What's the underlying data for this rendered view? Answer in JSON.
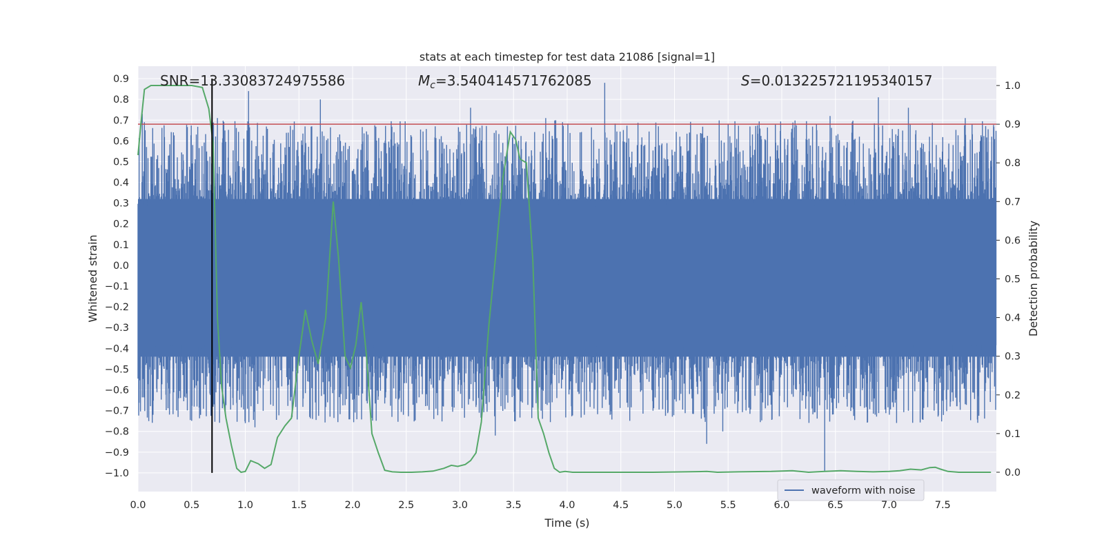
{
  "chart_data": {
    "type": "line",
    "title": "stats at each timestep for test data 21086 [signal=1]",
    "xlabel": "Time (s)",
    "ylabel_left": "Whitened strain",
    "ylabel_right": "Detection probability",
    "xlim": [
      0.0,
      8.0
    ],
    "ylim_left": [
      -1.09,
      0.96
    ],
    "ylim_right": [
      -0.05,
      1.05
    ],
    "x_ticks": [
      "0.0",
      "0.5",
      "1.0",
      "1.5",
      "2.0",
      "2.5",
      "3.0",
      "3.5",
      "4.0",
      "4.5",
      "5.0",
      "5.5",
      "6.0",
      "6.5",
      "7.0",
      "7.5"
    ],
    "y_left_ticks": [
      "0.9",
      "0.8",
      "0.7",
      "0.6",
      "0.5",
      "0.4",
      "0.3",
      "0.2",
      "0.1",
      "0.0",
      "−0.1",
      "−0.2",
      "−0.3",
      "−0.4",
      "−0.5",
      "−0.6",
      "−0.7",
      "−0.8",
      "−0.9",
      "−1.0"
    ],
    "y_right_ticks": [
      "1.0",
      "0.9",
      "0.8",
      "0.7",
      "0.6",
      "0.5",
      "0.4",
      "0.3",
      "0.2",
      "0.1",
      "0.0"
    ],
    "grid": true,
    "annotations": {
      "snr": "SNR=13.33083724975586",
      "mc_symbol": "M",
      "mc_sub": "c",
      "mc_value": "=3.540414571762085",
      "s_symbol": "S",
      "s_value": "=0.013225721195340157"
    },
    "threshold": {
      "axis": "right",
      "value": 0.9,
      "color": "#c44e52"
    },
    "marker_line": {
      "x": 0.69,
      "y_from": -1.0,
      "y_to": 0.9,
      "color": "#000000"
    },
    "series": [
      {
        "name": "waveform with noise",
        "axis": "left",
        "color": "#4c72b0",
        "kind": "noisy-strain",
        "dense_band": [
          -0.44,
          0.32
        ],
        "samples": 2400,
        "spikes": [
          {
            "x": 0.04,
            "y": 0.73
          },
          {
            "x": 0.06,
            "y": 0.69
          },
          {
            "x": 0.1,
            "y": -0.75
          },
          {
            "x": 0.29,
            "y": 0.53
          },
          {
            "x": 0.38,
            "y": -0.64
          },
          {
            "x": 0.51,
            "y": 0.58
          },
          {
            "x": 0.55,
            "y": -0.68
          },
          {
            "x": 0.64,
            "y": 0.53
          },
          {
            "x": 0.74,
            "y": 0.71
          },
          {
            "x": 1.03,
            "y": 0.84
          },
          {
            "x": 1.0,
            "y": -0.76
          },
          {
            "x": 1.09,
            "y": -0.78
          },
          {
            "x": 1.7,
            "y": 0.8
          },
          {
            "x": 1.62,
            "y": 0.67
          },
          {
            "x": 1.75,
            "y": -0.63
          },
          {
            "x": 1.9,
            "y": 0.55
          },
          {
            "x": 2.05,
            "y": 0.56
          },
          {
            "x": 2.55,
            "y": 0.62
          },
          {
            "x": 2.75,
            "y": -0.59
          },
          {
            "x": 3.1,
            "y": 0.76
          },
          {
            "x": 3.18,
            "y": -0.71
          },
          {
            "x": 3.33,
            "y": -0.82
          },
          {
            "x": 3.8,
            "y": 0.71
          },
          {
            "x": 4.16,
            "y": -0.72
          },
          {
            "x": 4.35,
            "y": 0.88
          },
          {
            "x": 4.4,
            "y": -0.72
          },
          {
            "x": 4.85,
            "y": 0.67
          },
          {
            "x": 5.05,
            "y": 0.62
          },
          {
            "x": 5.3,
            "y": -0.86
          },
          {
            "x": 5.45,
            "y": -0.8
          },
          {
            "x": 5.5,
            "y": 0.68
          },
          {
            "x": 6.45,
            "y": 0.72
          },
          {
            "x": 6.4,
            "y": -0.99
          },
          {
            "x": 6.9,
            "y": 0.81
          },
          {
            "x": 7.03,
            "y": -0.66
          },
          {
            "x": 7.18,
            "y": 0.76
          },
          {
            "x": 7.42,
            "y": -0.7
          },
          {
            "x": 7.71,
            "y": 0.71
          },
          {
            "x": 7.85,
            "y": 0.6
          }
        ]
      },
      {
        "name": "detection probability",
        "axis": "right",
        "color": "#55a868",
        "x": [
          0.0,
          0.03,
          0.06,
          0.12,
          0.2,
          0.3,
          0.4,
          0.5,
          0.6,
          0.66,
          0.7,
          0.74,
          0.78,
          0.82,
          0.87,
          0.92,
          0.96,
          1.0,
          1.05,
          1.12,
          1.18,
          1.24,
          1.3,
          1.37,
          1.43,
          1.5,
          1.56,
          1.62,
          1.68,
          1.75,
          1.82,
          1.87,
          1.93,
          1.98,
          2.03,
          2.08,
          2.13,
          2.18,
          2.24,
          2.3,
          2.37,
          2.45,
          2.55,
          2.65,
          2.75,
          2.85,
          2.92,
          2.98,
          3.05,
          3.1,
          3.15,
          3.2,
          3.27,
          3.33,
          3.4,
          3.47,
          3.52,
          3.56,
          3.62,
          3.68,
          3.73,
          3.78,
          3.83,
          3.88,
          3.93,
          3.98,
          4.05,
          4.12,
          4.2,
          4.3,
          4.5,
          4.8,
          5.1,
          5.3,
          5.4,
          5.6,
          5.9,
          6.1,
          6.25,
          6.4,
          6.55,
          6.7,
          6.85,
          7.0,
          7.1,
          7.2,
          7.3,
          7.38,
          7.43,
          7.48,
          7.55,
          7.65,
          7.8,
          7.95
        ],
        "y": [
          0.82,
          0.91,
          0.99,
          1.0,
          1.0,
          1.0,
          1.0,
          1.0,
          0.995,
          0.94,
          0.85,
          0.4,
          0.22,
          0.14,
          0.07,
          0.01,
          0.0,
          0.002,
          0.03,
          0.022,
          0.01,
          0.02,
          0.09,
          0.12,
          0.14,
          0.3,
          0.42,
          0.34,
          0.28,
          0.4,
          0.7,
          0.55,
          0.3,
          0.27,
          0.33,
          0.44,
          0.3,
          0.1,
          0.05,
          0.005,
          0.001,
          0.0,
          0.0,
          0.001,
          0.003,
          0.01,
          0.018,
          0.015,
          0.02,
          0.03,
          0.05,
          0.13,
          0.38,
          0.55,
          0.76,
          0.88,
          0.86,
          0.81,
          0.8,
          0.55,
          0.14,
          0.1,
          0.05,
          0.01,
          0.0,
          0.002,
          0.0,
          0.0,
          0.0,
          0.0,
          0.0,
          0.0,
          0.001,
          0.002,
          0.0,
          0.001,
          0.002,
          0.004,
          0.0,
          0.002,
          0.004,
          0.002,
          0.001,
          0.002,
          0.004,
          0.008,
          0.006,
          0.012,
          0.013,
          0.008,
          0.002,
          0.0,
          0.0,
          0.0
        ]
      }
    ],
    "legend": {
      "placement": "lower-right",
      "entries": [
        "waveform with noise"
      ]
    }
  }
}
